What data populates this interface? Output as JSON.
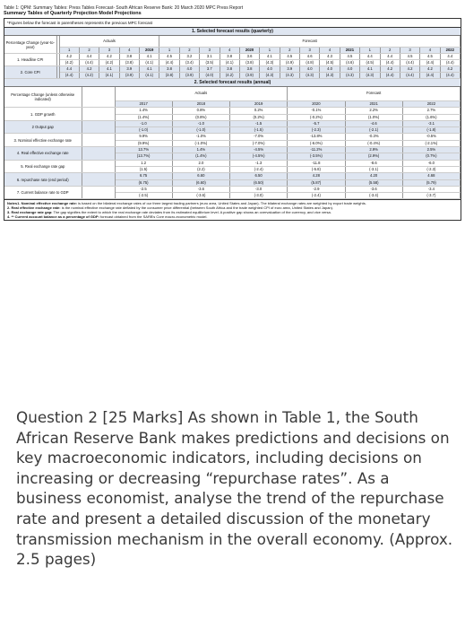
{
  "table": {
    "title": "Table 1: QPM: Summary Tables: Press Tables Forecast- South African Reserve Bank: 20 March 2020 MPC Press Report",
    "subtitle": "Summary Tables of Quarterly Projection Model Projections",
    "note": "*Figures below the forecast in parentheses represents the previous MPC forecast",
    "quarterly": {
      "section_title": "1. Selected forecast results (quarterly)",
      "corner_label": "Percentage Change (year-to-year)",
      "actuals_label": "Actuals",
      "forecast_label": "Forecast",
      "col_headers": [
        "1",
        "2",
        "3",
        "4",
        "2019",
        "1",
        "2",
        "3",
        "4",
        "2020",
        "1",
        "2",
        "3",
        "4",
        "2021",
        "1",
        "2",
        "3",
        "4",
        "2022"
      ],
      "rows": [
        {
          "label": "1. Headline CPI",
          "values": [
            "4.2",
            "4.4",
            "4.2",
            "3.8",
            "4.1",
            "4.5",
            "3.2",
            "3.1",
            "3.8",
            "3.6",
            "4.1",
            "4.5",
            "4.6",
            "4.3",
            "4.5",
            "4.4",
            "4.4",
            "4.5",
            "4.5",
            "4.4"
          ],
          "previous": [
            "(4.2)",
            "(4.4)",
            "(4.2)",
            "(3.8)",
            "(4.1)",
            "(4.4)",
            "(3.4)",
            "(3.5)",
            "(4.1)",
            "(3.8)",
            "(4.3)",
            "(4.9)",
            "(4.8)",
            "(4.5)",
            "(4.6)",
            "(4.5)",
            "(4.4)",
            "(4.4)",
            "(4.4)",
            "(4.4)"
          ]
        },
        {
          "label": "2. Core CPI",
          "values": [
            "4.4",
            "4.2",
            "4.1",
            "3.9",
            "4.1",
            "3.8",
            "4.0",
            "3.7",
            "3.8",
            "3.8",
            "4.0",
            "3.9",
            "4.0",
            "4.0",
            "4.0",
            "4.1",
            "4.2",
            "4.2",
            "4.2",
            "4.2"
          ],
          "previous": [
            "(4.4)",
            "(4.2)",
            "(4.1)",
            "(3.9)",
            "(4.1)",
            "(3.8)",
            "(3.9)",
            "(4.0)",
            "(4.2)",
            "(3.9)",
            "(4.3)",
            "(4.3)",
            "(4.3)",
            "(4.3)",
            "(4.3)",
            "(4.3)",
            "(4.4)",
            "(4.4)",
            "(4.4)",
            "(4.4)"
          ]
        }
      ]
    },
    "annual": {
      "section_title": "2. Selected forecast results (annual)",
      "corner_label": "Percentage Change (unless otherwise indicated)",
      "actuals_label": "Actuals",
      "forecast_label": "Forecast",
      "years": [
        "2017",
        "2018",
        "2019",
        "2020",
        "2021",
        "2022"
      ],
      "rows": [
        {
          "label": "1. GDP growth",
          "values": [
            "1.4%",
            "0.8%",
            "0.2%",
            "-0.1%",
            "2.2%",
            "2.7%"
          ],
          "previous": [
            "(1.4%)",
            "(0.8%)",
            "(0.2%)",
            "(-0.2%)",
            "(1.0%)",
            "(1.6%)"
          ]
        },
        {
          "label": "2 Output gap",
          "values": [
            "-1.0",
            "-1.0",
            "-1.5",
            "-5.7",
            "-4.6",
            "-3.1"
          ],
          "previous": [
            "(-1.0)",
            "(-1.0)",
            "(-1.5)",
            "(-2.3)",
            "(-2.1)",
            "(-1.8)"
          ]
        },
        {
          "label": "3. Nominal effective exchange rate",
          "values": [
            "9.9%",
            "-1.0%",
            "-7.0%",
            "-13.8%",
            "-0.3%",
            "-0.5%"
          ],
          "previous": [
            "(9.9%)",
            "(-1.0%)",
            "(-7.0%)",
            "(-6.0%)",
            "(-0.4%)",
            "(-2.1%)"
          ]
        },
        {
          "label": "4. Real effective exchange rate",
          "values": [
            "13.7%",
            "1.4%",
            "-4.5%",
            "-11.2%",
            "2.9%",
            "2.5%"
          ],
          "previous": [
            "(13.7%)",
            "(1.4%)",
            "(-4.5%)",
            "(-3.5%)",
            "(2.9%)",
            "(0.7%)"
          ]
        },
        {
          "label": "5. Real exchange rate gap",
          "values": [
            "1.2",
            "2.0",
            "-1.3",
            "-11.8",
            "-8.6",
            "-6.0"
          ],
          "previous": [
            "(1.5)",
            "(2.2)",
            "(-2.4)",
            "(-5.8)",
            "(-3.1)",
            "(-2.3)"
          ]
        },
        {
          "label": "6. repurchase rate (end period)",
          "values": [
            "6.75",
            "6.60",
            "6.50",
            "4.28",
            "4.20",
            "4.68"
          ],
          "previous": [
            "(6.75)",
            "(6.60)",
            "(6.50)",
            "(5.87)",
            "(5.58)",
            "(5.79)"
          ]
        },
        {
          "label": "7. Current balance rate to GDP",
          "values": [
            "-2.5",
            "-3.6",
            "-3.0",
            "-2.9",
            "-3.6",
            "-3.4"
          ],
          "previous": [
            "(-2.5)",
            "(-3.6)",
            "(-3.0)",
            "(-2.4)",
            "(-3.4)",
            "(-3.7)"
          ]
        }
      ]
    },
    "notes": {
      "heading": "Notes",
      "n1_title": "1. Nominal effective exchange rate:",
      "n1_text": "is based on the bilateral exchange rates of our three largest trading partners (euro area, United States and Japan). The bilateral exchange rates are weighted by export trade weights.",
      "n2_title": "2. Real effective exchange rate:",
      "n2_text": "is the nominal effective exchange rate deflated by the consumer price differential (between South Africa and the trade weighted CPI of euro area, United States and Japan).",
      "n3_title": "3. Real exchange rate gap:",
      "n3_text": "The gap signifies the extent to which the real exchange rate deviates from its estimated equilibrium level. A positive gap shows an overvaluation of the currency, and vice versa.",
      "n4_title": "4. ** Current account balance as a percentage of GDP:",
      "n4_text": "forecast obtained from the SARB's Core macro-econometric model."
    }
  },
  "question": {
    "text": "Question 2 [25 Marks] As shown in Table 1, the South African Reserve Bank makes predictions and decisions on key macroeconomic indicators, including decisions on increasing or decreasing “repurchase rates”. As a business economist, analyse the trend of the repurchase rate and present a detailed discussion of the monetary transmission mechanism in the overall economy. (Approx. 2.5 pages)"
  },
  "colors": {
    "shade": "#dfe6f1",
    "question_text": "#3a3a3a"
  }
}
